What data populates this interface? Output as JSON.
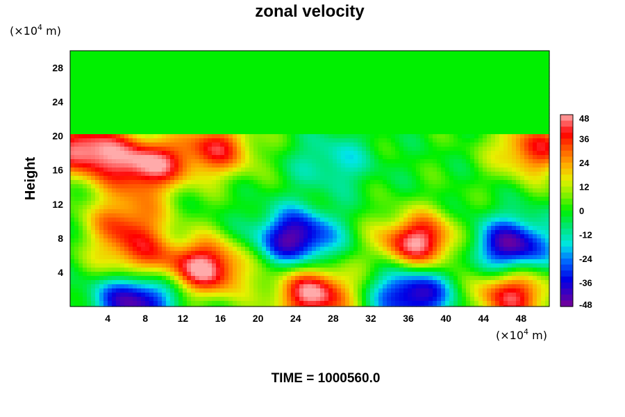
{
  "chart_data": {
    "type": "heatmap",
    "title": "zonal velocity",
    "ylabel": "Height",
    "xlabel": "",
    "x_unit": "(×10",
    "x_unit_exp": "4",
    "x_unit_tail": " m)",
    "y_unit": "(×10",
    "y_unit_exp": "4",
    "y_unit_tail": " m)",
    "footer": "TIME = 1000560.0",
    "xlim": [
      0,
      51
    ],
    "ylim": [
      0,
      30
    ],
    "x_ticks": [
      "4",
      "8",
      "12",
      "16",
      "20",
      "24",
      "28",
      "32",
      "36",
      "40",
      "44",
      "48"
    ],
    "y_ticks": [
      "4",
      "8",
      "12",
      "16",
      "20",
      "24",
      "28"
    ],
    "colorbar": {
      "range": [
        -48,
        48
      ],
      "ticks": [
        "48",
        "36",
        "24",
        "12",
        "0",
        "-12",
        "-24",
        "-36",
        "-48"
      ]
    },
    "features": [
      {
        "x": 1.5,
        "y": 18.5,
        "value": 48
      },
      {
        "x": 8,
        "y": 16.5,
        "value": 46
      },
      {
        "x": 6,
        "y": 10,
        "value": 30
      },
      {
        "x": 7,
        "y": 5.5,
        "value": 30
      },
      {
        "x": 14.5,
        "y": 4.5,
        "value": 48
      },
      {
        "x": 15.5,
        "y": 18.5,
        "value": 36
      },
      {
        "x": 26,
        "y": 1.5,
        "value": 48
      },
      {
        "x": 37,
        "y": 7.5,
        "value": 48
      },
      {
        "x": 49.5,
        "y": 18.5,
        "value": 36
      },
      {
        "x": 47,
        "y": 1.5,
        "value": 42
      },
      {
        "x": 24,
        "y": 8,
        "value": -46
      },
      {
        "x": 47,
        "y": 7,
        "value": -46
      },
      {
        "x": 36.5,
        "y": 1.5,
        "value": -44
      },
      {
        "x": 7,
        "y": 1,
        "value": -48
      },
      {
        "x": 28,
        "y": 17,
        "value": -16
      }
    ]
  }
}
